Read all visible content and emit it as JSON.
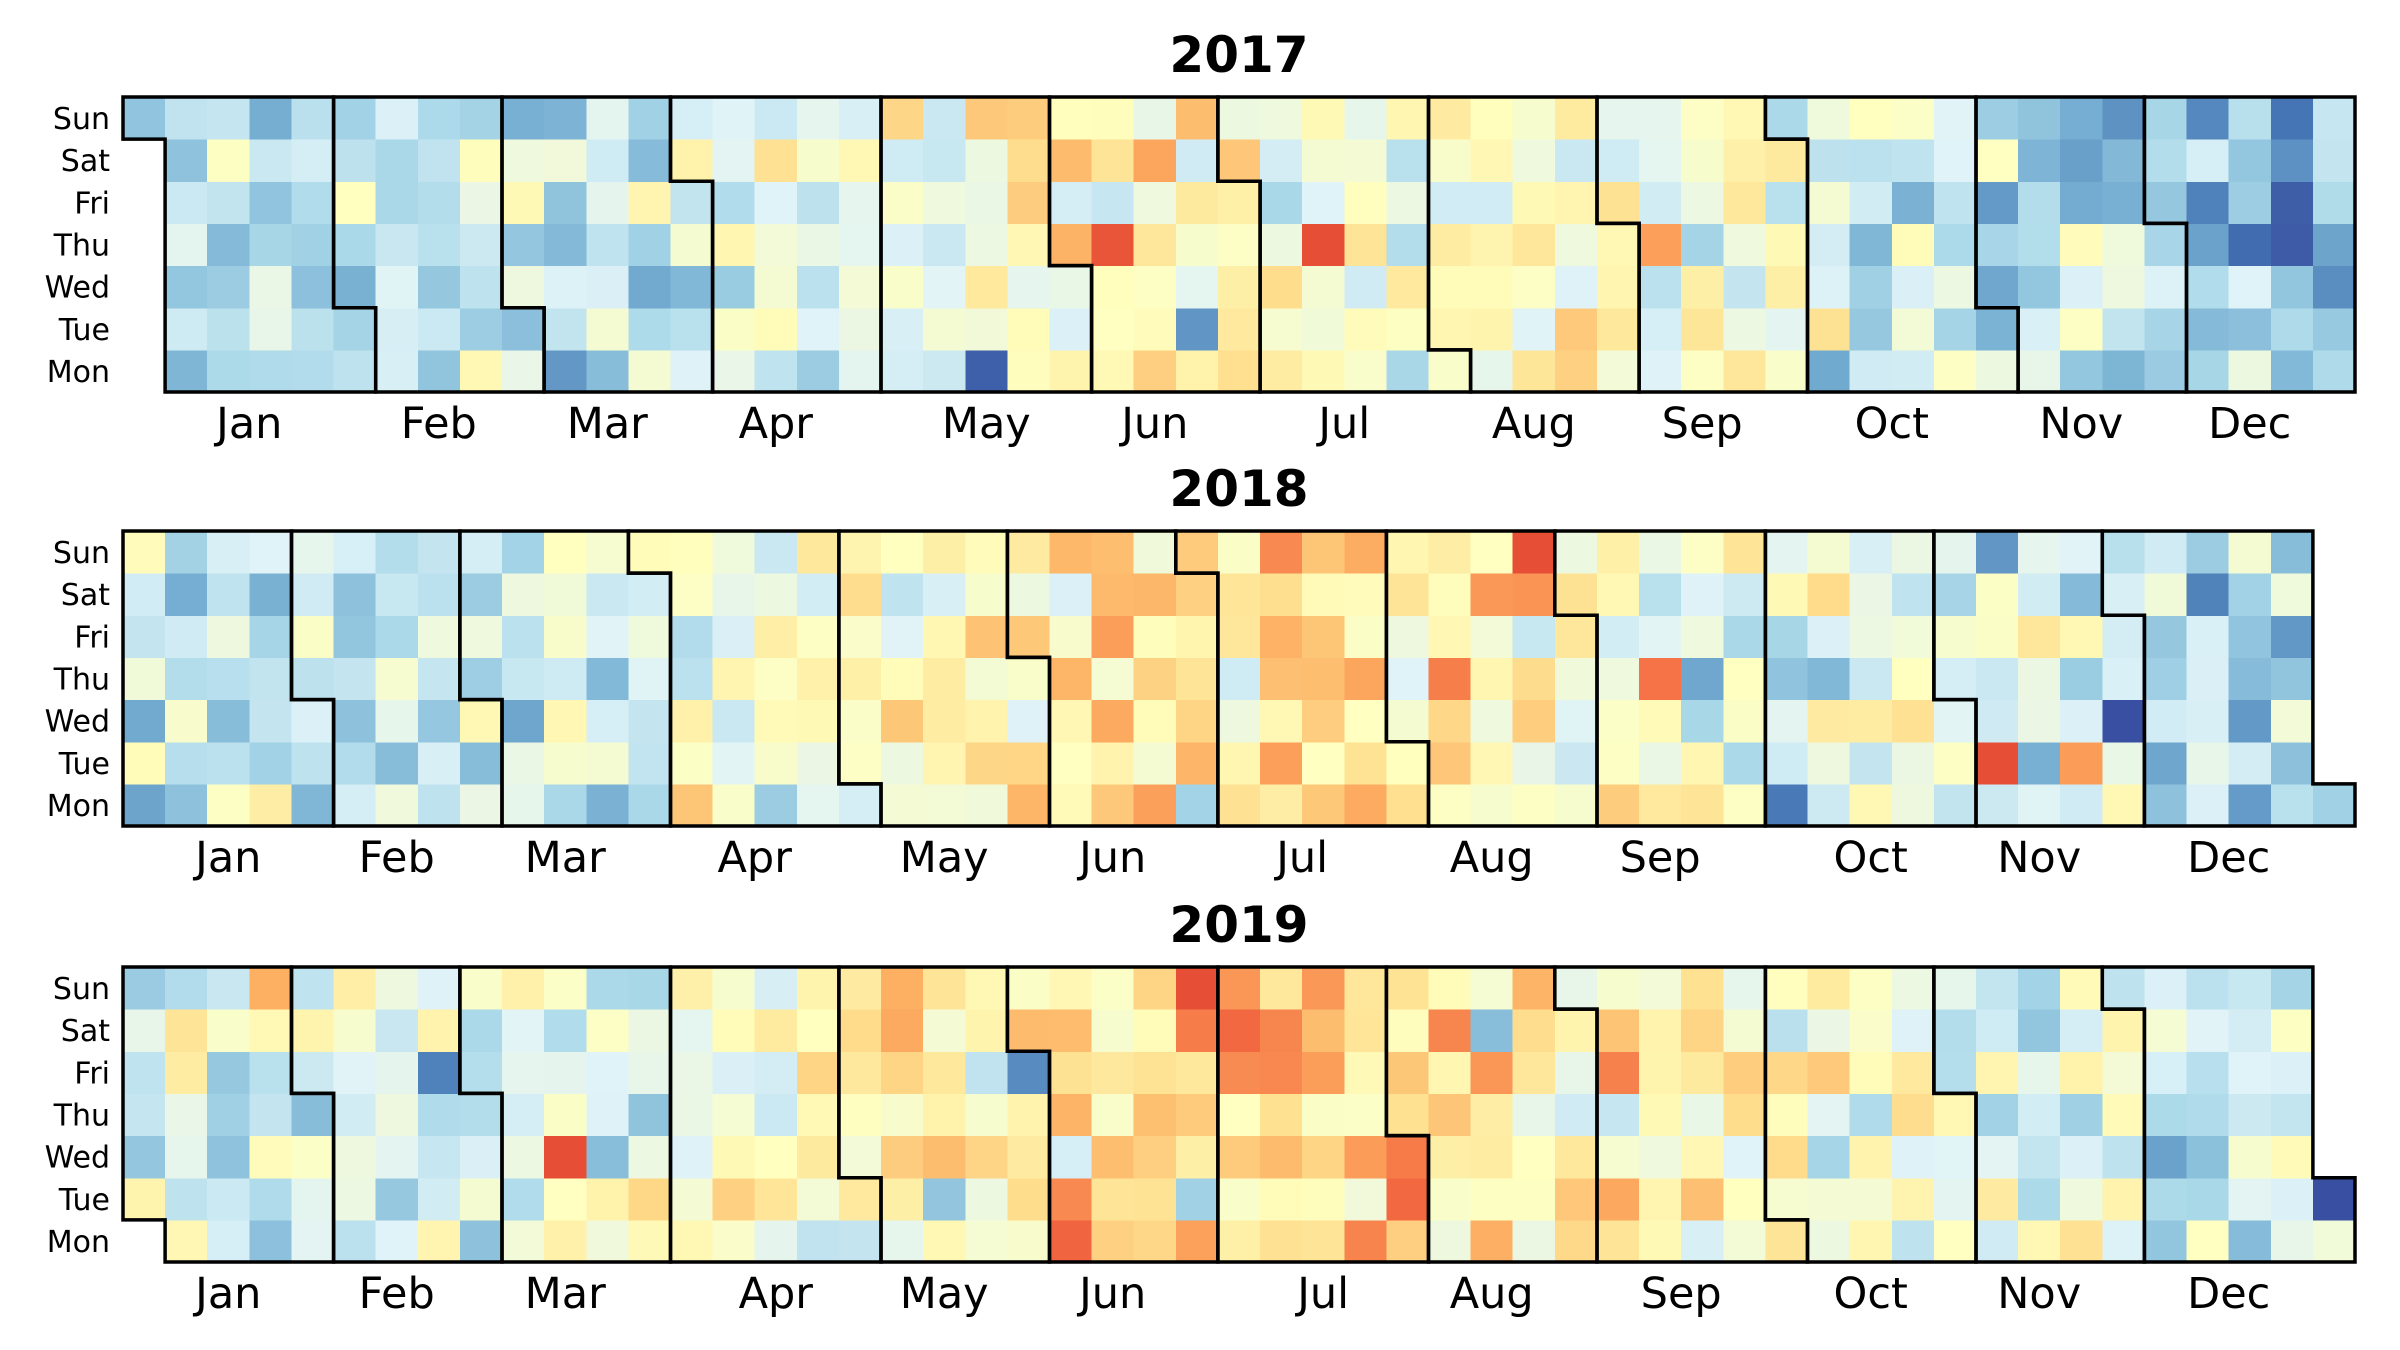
{
  "figure": {
    "background": "#ffffff",
    "text_color": "#000000"
  },
  "weekday_labels": [
    "Sun",
    "Sat",
    "Fri",
    "Thu",
    "Wed",
    "Tue",
    "Mon"
  ],
  "month_labels": [
    "Jan",
    "Feb",
    "Mar",
    "Apr",
    "May",
    "Jun",
    "Jul",
    "Aug",
    "Sep",
    "Oct",
    "Nov",
    "Dec"
  ],
  "chart_data": {
    "type": "heatmap",
    "subtype": "calendar-heatmap-by-weekday",
    "rows_top_to_bottom": [
      "Sun",
      "Sat",
      "Fri",
      "Thu",
      "Wed",
      "Tue",
      "Mon"
    ],
    "column_unit": "week (Mon bottom to Sun top)",
    "days_in_month": [
      31,
      28,
      31,
      30,
      31,
      30,
      31,
      31,
      30,
      31,
      30,
      31
    ],
    "years": [
      {
        "label": "2017",
        "jan1_weekday": "Sun",
        "jan1_weekday_mon0": 6,
        "n_week_columns": 53,
        "monthly_mean_intensity": [
          0.3,
          0.33,
          0.36,
          0.42,
          0.48,
          0.5,
          0.46,
          0.52,
          0.44,
          0.38,
          0.33,
          0.26
        ],
        "seed": 2017
      },
      {
        "label": "2018",
        "jan1_weekday": "Mon",
        "jan1_weekday_mon0": 0,
        "n_week_columns": 53,
        "monthly_mean_intensity": [
          0.32,
          0.36,
          0.4,
          0.46,
          0.52,
          0.55,
          0.57,
          0.53,
          0.48,
          0.43,
          0.37,
          0.3
        ],
        "seed": 2018
      },
      {
        "label": "2019",
        "jan1_weekday": "Tue",
        "jan1_weekday_mon0": 1,
        "n_week_columns": 53,
        "monthly_mean_intensity": [
          0.41,
          0.4,
          0.44,
          0.5,
          0.55,
          0.62,
          0.63,
          0.58,
          0.53,
          0.48,
          0.42,
          0.4
        ],
        "seed": 2019
      }
    ],
    "intensity_scale": {
      "min": 0,
      "max": 1,
      "noise_amplitude": 0.22,
      "outlier_chance": 0.06,
      "outlier_amplitude": 0.7
    },
    "colormap": {
      "name": "RdYlBu_r",
      "stops": [
        "#313695",
        "#4575b4",
        "#74add1",
        "#abd9e9",
        "#e0f3f8",
        "#ffffbf",
        "#fee090",
        "#fdae61",
        "#f46d43",
        "#d73027",
        "#a50026"
      ]
    },
    "month_border_color": "#000000",
    "month_border_width": 3.5
  }
}
